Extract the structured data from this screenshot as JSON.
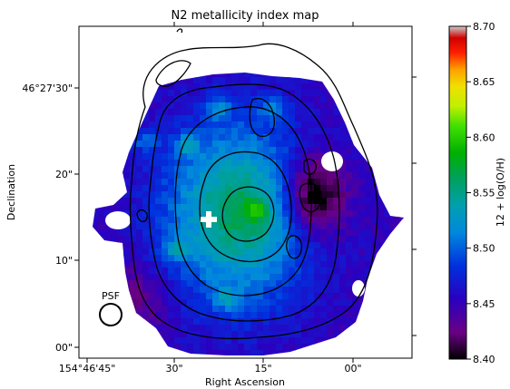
{
  "chart_data": {
    "type": "heatmap",
    "title": "N2 metallicity index map",
    "xlabel": "Right Ascension",
    "ylabel": "Declination",
    "x_ticks": [
      "154°46'45\"",
      "30\"",
      "15\"",
      "00\""
    ],
    "y_ticks": [
      "46°27'30\"",
      "20\"",
      "10\"",
      "00\""
    ],
    "colorbar": {
      "label": "12 + log(O/H)",
      "range": [
        8.4,
        8.7
      ],
      "ticks": [
        "8.70",
        "8.65",
        "8.60",
        "8.55",
        "8.50",
        "8.45",
        "8.40"
      ],
      "colormap": "nipy_spectral"
    },
    "annotations": {
      "psf": "PSF"
    },
    "map": {
      "background": 8.45,
      "features": [
        {
          "kind": "ridge",
          "description": "green disk",
          "value": 8.555
        },
        {
          "kind": "core",
          "value": 8.565
        },
        {
          "kind": "blob",
          "value": 8.6
        },
        {
          "kind": "hole",
          "value": 8.47
        }
      ]
    }
  },
  "colors": {
    "contour": "#000000",
    "marker": "#ffffff",
    "masked_gap": "#ffffff"
  }
}
